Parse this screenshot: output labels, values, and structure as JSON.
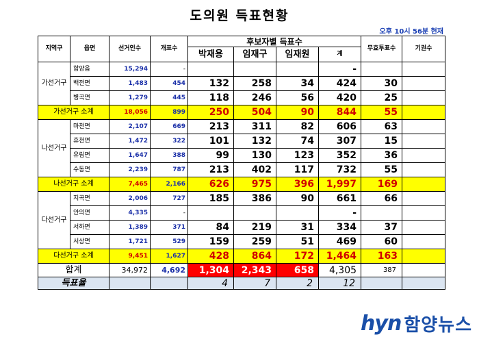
{
  "title": "도의원 득표현황",
  "time_note": "오후 10시 56분 현재",
  "headers": {
    "region": "지역구",
    "town": "읍면",
    "electorate": "선거인수",
    "ballots": "개표수",
    "candidates_group": "후보자별 득표수",
    "candidates": [
      "박재용",
      "임재구",
      "임재원"
    ],
    "sum": "계",
    "invalid": "무효투표수",
    "abstain": "기권수"
  },
  "districts": [
    {
      "name": "가선거구",
      "rows": [
        {
          "town": "함양읍",
          "electorate": "15,294",
          "ballots": "-",
          "c1": "",
          "c2": "",
          "c3": "",
          "sum": "-",
          "invalid": "",
          "abstain": ""
        },
        {
          "town": "백전면",
          "electorate": "1,483",
          "ballots": "454",
          "c1": "132",
          "c2": "258",
          "c3": "34",
          "sum": "424",
          "invalid": "30",
          "abstain": ""
        },
        {
          "town": "병곡면",
          "electorate": "1,279",
          "ballots": "445",
          "c1": "118",
          "c2": "246",
          "c3": "56",
          "sum": "420",
          "invalid": "25",
          "abstain": ""
        }
      ],
      "subtotal": {
        "label": "가선거구 소계",
        "electorate": "18,056",
        "ballots": "899",
        "c1": "250",
        "c2": "504",
        "c3": "90",
        "sum": "844",
        "invalid": "55",
        "abstain": ""
      }
    },
    {
      "name": "나선거구",
      "rows": [
        {
          "town": "마천면",
          "electorate": "2,107",
          "ballots": "669",
          "c1": "213",
          "c2": "311",
          "c3": "82",
          "sum": "606",
          "invalid": "63",
          "abstain": ""
        },
        {
          "town": "휴천면",
          "electorate": "1,472",
          "ballots": "322",
          "c1": "101",
          "c2": "132",
          "c3": "74",
          "sum": "307",
          "invalid": "15",
          "abstain": ""
        },
        {
          "town": "유림면",
          "electorate": "1,647",
          "ballots": "388",
          "c1": "99",
          "c2": "130",
          "c3": "123",
          "sum": "352",
          "invalid": "36",
          "abstain": ""
        },
        {
          "town": "수동면",
          "electorate": "2,239",
          "ballots": "787",
          "c1": "213",
          "c2": "402",
          "c3": "117",
          "sum": "732",
          "invalid": "55",
          "abstain": ""
        }
      ],
      "subtotal": {
        "label": "나선거구 소계",
        "electorate": "7,465",
        "ballots": "2,166",
        "c1": "626",
        "c2": "975",
        "c3": "396",
        "sum": "1,997",
        "invalid": "169",
        "abstain": ""
      }
    },
    {
      "name": "다선거구",
      "rows": [
        {
          "town": "지곡면",
          "electorate": "2,006",
          "ballots": "727",
          "c1": "185",
          "c2": "386",
          "c3": "90",
          "sum": "661",
          "invalid": "66",
          "abstain": ""
        },
        {
          "town": "안의면",
          "electorate": "4,335",
          "ballots": "-",
          "c1": "",
          "c2": "",
          "c3": "",
          "sum": "-",
          "invalid": "",
          "abstain": ""
        },
        {
          "town": "서하면",
          "electorate": "1,389",
          "ballots": "371",
          "c1": "84",
          "c2": "219",
          "c3": "31",
          "sum": "334",
          "invalid": "37",
          "abstain": ""
        },
        {
          "town": "서상면",
          "electorate": "1,721",
          "ballots": "529",
          "c1": "159",
          "c2": "259",
          "c3": "51",
          "sum": "469",
          "invalid": "60",
          "abstain": ""
        }
      ],
      "subtotal": {
        "label": "다선거구 소계",
        "electorate": "9,451",
        "ballots": "1,627",
        "c1": "428",
        "c2": "864",
        "c3": "172",
        "sum": "1,464",
        "invalid": "163",
        "abstain": ""
      }
    }
  ],
  "total": {
    "label": "합계",
    "electorate": "34,972",
    "ballots": "4,692",
    "c1": "1,304",
    "c2": "2,343",
    "c3": "658",
    "sum": "4,305",
    "invalid": "387"
  },
  "rate": {
    "label": "득표율",
    "c1": "4",
    "c2": "7",
    "c3": "2",
    "sum": "12"
  },
  "logo": {
    "brand": "hyn",
    "name": "함양뉴스"
  },
  "colors": {
    "subtotal_bg": "#ffff00",
    "highlight_red": "#ff0000",
    "rate_bg": "#dbe5f1",
    "blue_text": "#1a2fa8",
    "logo_blue": "#1a4fa8"
  }
}
